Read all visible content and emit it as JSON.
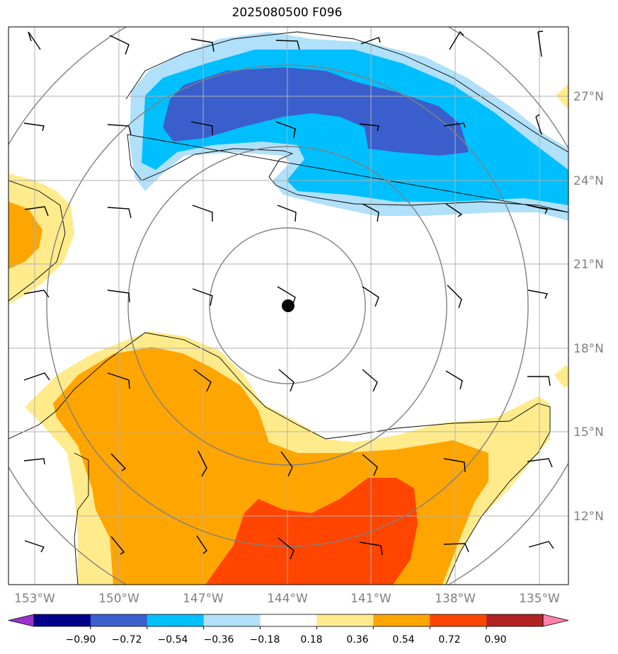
{
  "title": "2025080500 F096",
  "lon_labels": [
    "153°W",
    "150°W",
    "147°W",
    "144°W",
    "141°W",
    "138°W",
    "135°W"
  ],
  "lat_labels": [
    "27°N",
    "24°N",
    "21°N",
    "18°N",
    "15°N",
    "12°N"
  ],
  "colorbar": {
    "colors": [
      "#9932cc",
      "#00008b",
      "#3a5fcd",
      "#00bfff",
      "#b0e0fa",
      "#ffffff",
      "#ffeb8c",
      "#ffa500",
      "#ff4500",
      "#b22222",
      "#ff82ab"
    ],
    "labels": [
      "−0.90",
      "−0.72",
      "−0.54",
      "−0.36",
      "−0.18",
      "0.18",
      "0.36",
      "0.54",
      "0.72",
      "0.90"
    ]
  },
  "colors": {
    "contour_ring": "#808080",
    "grid": "#b0b0b0",
    "center_marker": "#000000"
  }
}
